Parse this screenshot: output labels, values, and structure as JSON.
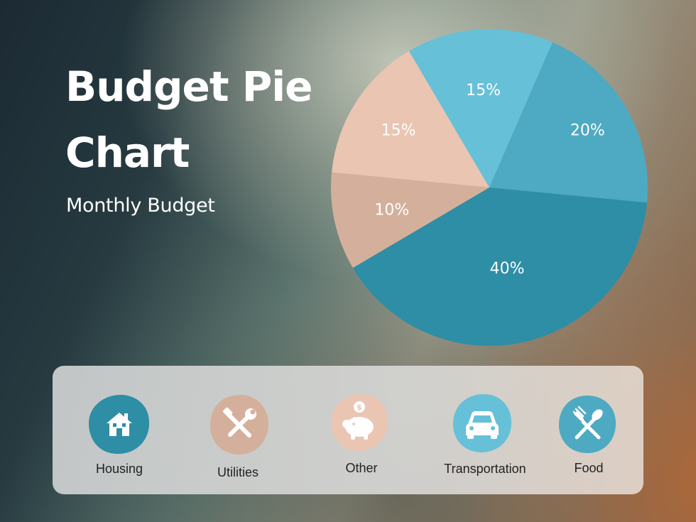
{
  "header": {
    "title": "Budget Pie Chart",
    "subtitle": "Monthly Budget"
  },
  "chart_data": {
    "type": "pie",
    "slices": [
      {
        "label": "15%",
        "value": 15,
        "color": "#66c0d8"
      },
      {
        "label": "20%",
        "value": 20,
        "color": "#4ea9c2"
      },
      {
        "label": "40%",
        "value": 40,
        "color": "#2d8ea5"
      },
      {
        "label": "10%",
        "value": 10,
        "color": "#d4b09c"
      },
      {
        "label": "15%",
        "value": 15,
        "color": "#e9c5b2"
      }
    ]
  },
  "legend": {
    "items": [
      {
        "label": "Housing",
        "icon": "house-icon",
        "color": "#2d8ea5"
      },
      {
        "label": "Utilities",
        "icon": "tools-icon",
        "color": "#d4b09c"
      },
      {
        "label": "Other",
        "icon": "piggy-bank-icon",
        "color": "#e9c5b2"
      },
      {
        "label": "Transportation",
        "icon": "car-icon",
        "color": "#66c0d8"
      },
      {
        "label": "Food",
        "icon": "fork-spoon-icon",
        "color": "#4ea9c2"
      }
    ]
  }
}
